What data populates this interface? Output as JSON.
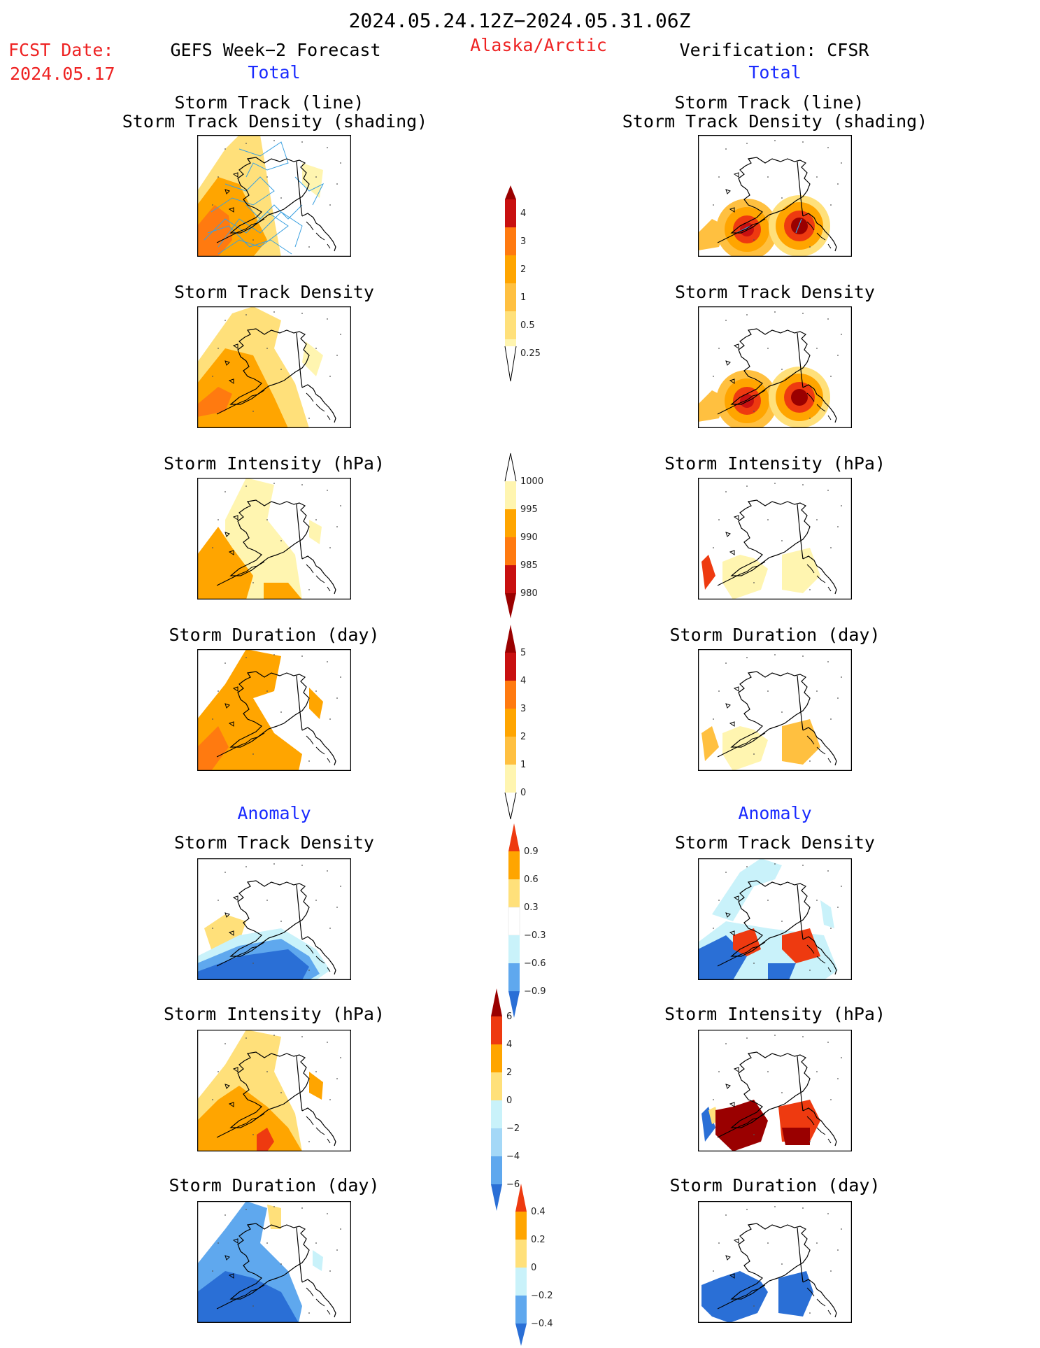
{
  "header": {
    "period": "2024.05.24.12Z−2024.05.31.06Z",
    "fcst_label": "FCST Date:",
    "fcst_date": "2024.05.17",
    "left_title": "GEFS Week−2 Forecast",
    "region": "Alaska/Arctic",
    "right_title": "Verification: CFSR",
    "total_left": "Total",
    "total_right": "Total",
    "anomaly_left": "Anomaly",
    "anomaly_right": "Anomaly"
  },
  "panel_titles": {
    "track_line": "Storm Track (line)",
    "track_shading": "Storm Track Density (shading)",
    "density": "Storm Track Density",
    "intensity": "Storm Intensity (hPa)",
    "duration": "Storm Duration (day)"
  },
  "colors": {
    "pale_yellow": "#fff5b0",
    "yellow": "#ffe07a",
    "light_orange": "#ffc040",
    "orange": "#ffa500",
    "dark_orange": "#ff7a10",
    "red": "#ee3a10",
    "dark_red": "#c81010",
    "maroon": "#9a0000",
    "pale_blue": "#c9f2fa",
    "light_blue": "#a4d8f7",
    "mid_blue": "#5fa8ee",
    "blue": "#2a6fd6",
    "track_line": "#3aa0e0"
  },
  "colorbars": {
    "density_total": {
      "labels": [
        "4",
        "3",
        "2",
        "1",
        "0.5",
        "0.25"
      ]
    },
    "intensity_total": {
      "labels": [
        "1000",
        "995",
        "990",
        "985",
        "980"
      ]
    },
    "duration_total": {
      "labels": [
        "5",
        "4",
        "3",
        "2",
        "1",
        "0"
      ]
    },
    "density_anomaly": {
      "labels": [
        "0.9",
        "0.6",
        "0.3",
        "−0.3",
        "−0.6",
        "−0.9"
      ]
    },
    "intensity_anomaly": {
      "labels": [
        "6",
        "4",
        "2",
        "0",
        "−2",
        "−4",
        "−6"
      ]
    },
    "duration_anomaly": {
      "labels": [
        "0.4",
        "0.2",
        "0",
        "−0.2",
        "−0.4"
      ]
    }
  }
}
